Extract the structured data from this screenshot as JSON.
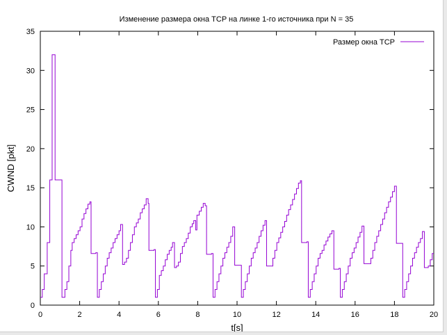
{
  "chart_data": {
    "type": "line",
    "title": "Изменение размера окна TCP на линке 1-го источника при N = 35",
    "xlabel": "t[s]",
    "ylabel": "CWND [pkt]",
    "xlim": [
      0,
      20
    ],
    "ylim": [
      0,
      35
    ],
    "xticks": [
      "0",
      "2",
      "4",
      "6",
      "8",
      "10",
      "12",
      "14",
      "16",
      "18",
      "20"
    ],
    "yticks": [
      "0",
      "5",
      "10",
      "15",
      "20",
      "25",
      "30",
      "35"
    ],
    "grid": false,
    "legend": "top-right",
    "step": true,
    "series": [
      {
        "name": "Размер окна TCP",
        "color": "#9400d3",
        "points": [
          [
            0.0,
            1
          ],
          [
            0.1,
            2
          ],
          [
            0.2,
            4
          ],
          [
            0.35,
            8
          ],
          [
            0.48,
            16
          ],
          [
            0.6,
            32
          ],
          [
            0.75,
            16
          ],
          [
            1.1,
            1
          ],
          [
            1.25,
            2
          ],
          [
            1.35,
            3
          ],
          [
            1.45,
            5
          ],
          [
            1.55,
            7
          ],
          [
            1.62,
            8
          ],
          [
            1.72,
            8.5
          ],
          [
            1.82,
            9
          ],
          [
            1.92,
            9.5
          ],
          [
            2.02,
            10
          ],
          [
            2.12,
            11
          ],
          [
            2.22,
            11.7
          ],
          [
            2.32,
            12.3
          ],
          [
            2.42,
            12.9
          ],
          [
            2.52,
            13.2
          ],
          [
            2.58,
            6.6
          ],
          [
            2.82,
            6.7
          ],
          [
            2.9,
            1
          ],
          [
            3.0,
            2
          ],
          [
            3.1,
            3
          ],
          [
            3.2,
            4
          ],
          [
            3.3,
            5
          ],
          [
            3.4,
            6
          ],
          [
            3.5,
            6.7
          ],
          [
            3.6,
            7.3
          ],
          [
            3.7,
            8
          ],
          [
            3.8,
            8.5
          ],
          [
            3.9,
            9
          ],
          [
            4.0,
            9.5
          ],
          [
            4.08,
            10.3
          ],
          [
            4.18,
            5.2
          ],
          [
            4.28,
            5.5
          ],
          [
            4.38,
            6
          ],
          [
            4.48,
            7
          ],
          [
            4.58,
            8
          ],
          [
            4.68,
            9
          ],
          [
            4.78,
            10
          ],
          [
            4.88,
            10.5
          ],
          [
            4.98,
            11
          ],
          [
            5.08,
            11.8
          ],
          [
            5.18,
            12.3
          ],
          [
            5.28,
            12.8
          ],
          [
            5.38,
            13.6
          ],
          [
            5.48,
            13
          ],
          [
            5.52,
            7
          ],
          [
            5.78,
            7.1
          ],
          [
            5.85,
            1
          ],
          [
            5.95,
            2
          ],
          [
            6.05,
            3.8
          ],
          [
            6.15,
            4.4
          ],
          [
            6.25,
            5
          ],
          [
            6.35,
            5.8
          ],
          [
            6.45,
            6.5
          ],
          [
            6.55,
            7
          ],
          [
            6.65,
            7.4
          ],
          [
            6.72,
            8
          ],
          [
            6.82,
            4.8
          ],
          [
            6.92,
            5
          ],
          [
            7.02,
            5.5
          ],
          [
            7.12,
            6.6
          ],
          [
            7.22,
            7.5
          ],
          [
            7.32,
            8
          ],
          [
            7.42,
            8.5
          ],
          [
            7.52,
            9.2
          ],
          [
            7.62,
            10
          ],
          [
            7.72,
            10.4
          ],
          [
            7.8,
            10.8
          ],
          [
            7.9,
            9.6
          ],
          [
            7.96,
            11.5
          ],
          [
            8.08,
            12
          ],
          [
            8.18,
            12.5
          ],
          [
            8.28,
            13
          ],
          [
            8.38,
            12.7
          ],
          [
            8.45,
            6.5
          ],
          [
            8.7,
            6.6
          ],
          [
            8.78,
            1
          ],
          [
            8.88,
            2
          ],
          [
            8.98,
            3
          ],
          [
            9.08,
            4
          ],
          [
            9.18,
            5
          ],
          [
            9.28,
            6
          ],
          [
            9.38,
            6.7
          ],
          [
            9.48,
            7.4
          ],
          [
            9.58,
            8
          ],
          [
            9.68,
            8.8
          ],
          [
            9.78,
            10
          ],
          [
            9.88,
            5.1
          ],
          [
            10.15,
            5.1
          ],
          [
            10.22,
            1
          ],
          [
            10.32,
            2
          ],
          [
            10.42,
            3
          ],
          [
            10.52,
            4
          ],
          [
            10.62,
            5
          ],
          [
            10.72,
            6
          ],
          [
            10.82,
            6.7
          ],
          [
            10.92,
            7.3
          ],
          [
            11.02,
            8
          ],
          [
            11.12,
            8.8
          ],
          [
            11.22,
            9.5
          ],
          [
            11.32,
            10.2
          ],
          [
            11.42,
            10.8
          ],
          [
            11.5,
            5
          ],
          [
            11.75,
            5
          ],
          [
            11.82,
            6
          ],
          [
            11.92,
            7
          ],
          [
            12.02,
            8
          ],
          [
            12.12,
            8.6
          ],
          [
            12.22,
            9.3
          ],
          [
            12.32,
            10
          ],
          [
            12.42,
            10.7
          ],
          [
            12.52,
            11.5
          ],
          [
            12.62,
            12.2
          ],
          [
            12.72,
            12.8
          ],
          [
            12.82,
            13.5
          ],
          [
            12.92,
            14.2
          ],
          [
            13.02,
            14.9
          ],
          [
            13.12,
            15.6
          ],
          [
            13.22,
            15.9
          ],
          [
            13.28,
            8
          ],
          [
            13.55,
            8.1
          ],
          [
            13.62,
            1
          ],
          [
            13.72,
            2
          ],
          [
            13.82,
            3
          ],
          [
            13.92,
            4
          ],
          [
            14.02,
            5
          ],
          [
            14.12,
            6
          ],
          [
            14.22,
            6.6
          ],
          [
            14.32,
            7
          ],
          [
            14.42,
            7.7
          ],
          [
            14.52,
            8.2
          ],
          [
            14.62,
            8.7
          ],
          [
            14.72,
            9.1
          ],
          [
            14.82,
            9.5
          ],
          [
            14.92,
            4.6
          ],
          [
            15.18,
            4.7
          ],
          [
            15.25,
            1
          ],
          [
            15.35,
            2
          ],
          [
            15.45,
            3
          ],
          [
            15.55,
            4
          ],
          [
            15.65,
            5
          ],
          [
            15.75,
            6
          ],
          [
            15.85,
            6.7
          ],
          [
            15.95,
            7.3
          ],
          [
            16.05,
            8
          ],
          [
            16.15,
            8.7
          ],
          [
            16.25,
            9.3
          ],
          [
            16.35,
            10.1
          ],
          [
            16.45,
            5.3
          ],
          [
            16.72,
            5.3
          ],
          [
            16.8,
            6
          ],
          [
            16.9,
            7
          ],
          [
            17.0,
            8
          ],
          [
            17.1,
            8.8
          ],
          [
            17.2,
            9.5
          ],
          [
            17.3,
            10.3
          ],
          [
            17.4,
            11
          ],
          [
            17.5,
            11.8
          ],
          [
            17.6,
            12.5
          ],
          [
            17.7,
            13.2
          ],
          [
            17.8,
            13.8
          ],
          [
            17.9,
            14.5
          ],
          [
            18.0,
            15.2
          ],
          [
            18.1,
            7.9
          ],
          [
            18.35,
            7.9
          ],
          [
            18.42,
            1
          ],
          [
            18.52,
            2
          ],
          [
            18.62,
            3
          ],
          [
            18.72,
            4
          ],
          [
            18.82,
            5
          ],
          [
            18.92,
            6
          ],
          [
            19.02,
            6.7
          ],
          [
            19.12,
            7.4
          ],
          [
            19.22,
            8
          ],
          [
            19.32,
            8.5
          ],
          [
            19.42,
            9.4
          ],
          [
            19.52,
            4.8
          ],
          [
            19.72,
            5
          ],
          [
            19.82,
            5.8
          ],
          [
            19.92,
            6.6
          ],
          [
            20.0,
            6.6
          ]
        ]
      }
    ]
  }
}
